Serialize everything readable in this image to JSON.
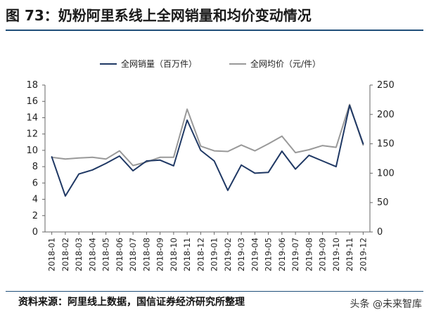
{
  "header": {
    "title": "图 73：奶粉阿里系线上全网销量和均价变动情况"
  },
  "footer": {
    "source": "资料来源：阿里线上数据，国信证券经济研究所整理",
    "watermark": "头条 @未来智库"
  },
  "chart_data": {
    "type": "line",
    "x": [
      "2018-01",
      "2018-02",
      "2018-03",
      "2018-04",
      "2018-05",
      "2018-06",
      "2018-07",
      "2018-08",
      "2018-09",
      "2018-10",
      "2018-11",
      "2018-12",
      "2019-01",
      "2019-02",
      "2019-03",
      "2019-04",
      "2019-05",
      "2019-06",
      "2019-07",
      "2019-08",
      "2019-09",
      "2019-10",
      "2019-11",
      "2019-12"
    ],
    "series": [
      {
        "name": "全网销量（百万件）",
        "axis": "left",
        "color": "#1f3864",
        "values": [
          9.2,
          4.4,
          7.1,
          7.6,
          8.4,
          9.3,
          7.5,
          8.7,
          8.8,
          8.1,
          13.7,
          10.0,
          8.7,
          5.1,
          8.2,
          7.2,
          7.3,
          9.9,
          7.7,
          9.4,
          8.7,
          8.0,
          15.5,
          10.8
        ]
      },
      {
        "name": "全网均价（元/件）",
        "axis": "right",
        "color": "#999999",
        "values": [
          127,
          124,
          126,
          127,
          124,
          138,
          113,
          119,
          127,
          127,
          209,
          146,
          138,
          137,
          148,
          138,
          150,
          163,
          135,
          140,
          147,
          144,
          217,
          148
        ]
      }
    ],
    "yleft": {
      "ticks": [
        0,
        2,
        4,
        6,
        8,
        10,
        12,
        14,
        16,
        18
      ],
      "range": [
        0,
        18
      ]
    },
    "yright": {
      "ticks": [
        0,
        50,
        100,
        150,
        200,
        250
      ],
      "range": [
        0,
        250
      ]
    },
    "legend": "top-center",
    "grid": false
  }
}
